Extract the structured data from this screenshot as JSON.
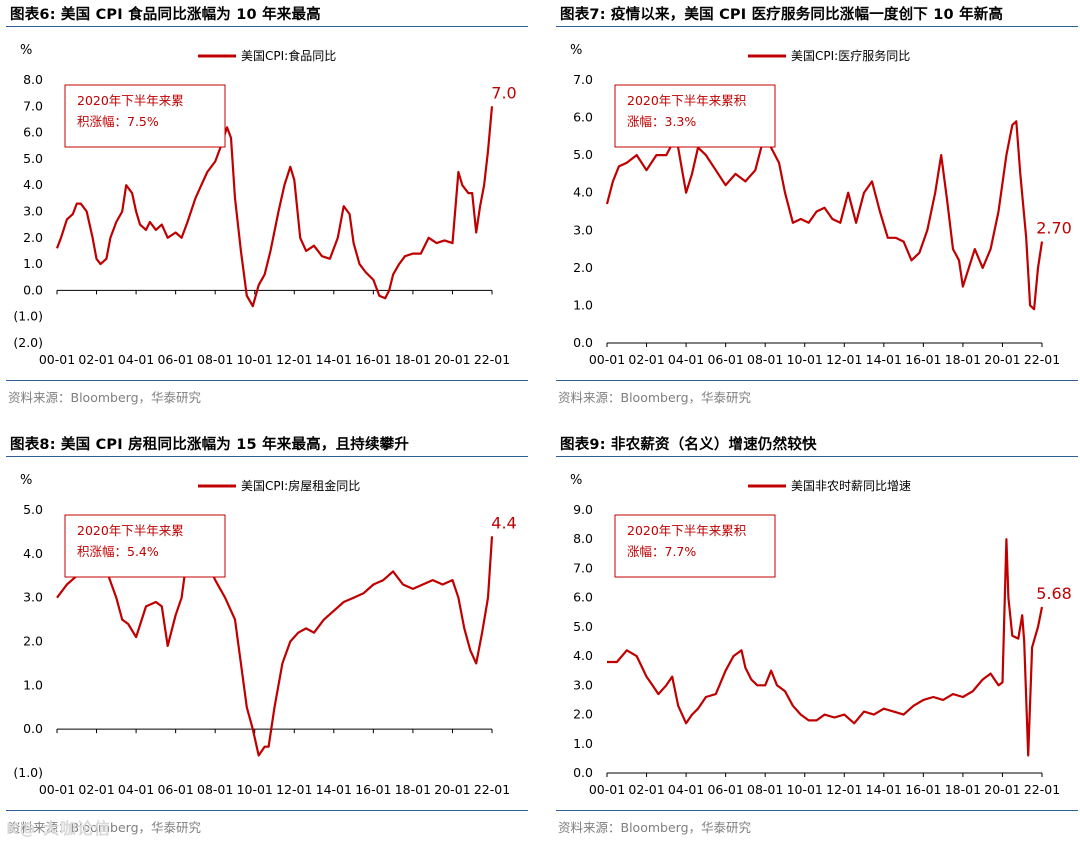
{
  "panels": [
    {
      "title": "图表6:  美国 CPI 食品同比涨幅为 10 年来最高",
      "source": "资料来源：Bloomberg，华泰研究",
      "chart_data": {
        "type": "line",
        "unit_label": "%",
        "legend": "美国CPI:食品同比",
        "annotation": [
          "2020年下半年来累",
          "积涨幅：7.5%"
        ],
        "end_label": "7.0",
        "ylim": [
          -2,
          8
        ],
        "y_ticks": [
          -2,
          -1,
          0,
          1,
          2,
          3,
          4,
          5,
          6,
          7,
          8
        ],
        "y_tick_labels": [
          "(2.0)",
          "(1.0)",
          "0.0",
          "1.0",
          "2.0",
          "3.0",
          "4.0",
          "5.0",
          "6.0",
          "7.0",
          "8.0"
        ],
        "x_tick_labels": [
          "00-01",
          "02-01",
          "04-01",
          "06-01",
          "08-01",
          "10-01",
          "12-01",
          "14-01",
          "16-01",
          "18-01",
          "20-01",
          "22-01"
        ],
        "x": [
          2000.0,
          2000.2,
          2000.5,
          2000.8,
          2001.0,
          2001.2,
          2001.5,
          2001.8,
          2002.0,
          2002.2,
          2002.5,
          2002.7,
          2003.0,
          2003.3,
          2003.5,
          2003.8,
          2004.0,
          2004.2,
          2004.5,
          2004.7,
          2005.0,
          2005.3,
          2005.6,
          2006.0,
          2006.3,
          2006.6,
          2007.0,
          2007.3,
          2007.6,
          2008.0,
          2008.3,
          2008.6,
          2008.8,
          2009.0,
          2009.3,
          2009.6,
          2009.9,
          2010.2,
          2010.5,
          2010.8,
          2011.2,
          2011.5,
          2011.8,
          2012.0,
          2012.3,
          2012.6,
          2013.0,
          2013.4,
          2013.8,
          2014.2,
          2014.5,
          2014.8,
          2015.0,
          2015.3,
          2015.6,
          2016.0,
          2016.3,
          2016.6,
          2016.8,
          2017.0,
          2017.3,
          2017.6,
          2018.0,
          2018.4,
          2018.8,
          2019.2,
          2019.6,
          2020.0,
          2020.3,
          2020.5,
          2020.8,
          2021.0,
          2021.2,
          2021.4,
          2021.6,
          2021.8,
          2022.0
        ],
        "values": [
          1.6,
          2.0,
          2.7,
          2.9,
          3.3,
          3.3,
          3.0,
          2.0,
          1.2,
          1.0,
          1.2,
          2.0,
          2.6,
          3.0,
          4.0,
          3.7,
          3.0,
          2.5,
          2.3,
          2.6,
          2.3,
          2.5,
          2.0,
          2.2,
          2.0,
          2.6,
          3.5,
          4.0,
          4.5,
          4.9,
          5.5,
          6.2,
          5.8,
          3.5,
          1.5,
          -0.2,
          -0.6,
          0.2,
          0.6,
          1.5,
          3.0,
          4.0,
          4.7,
          4.2,
          2.0,
          1.5,
          1.7,
          1.3,
          1.2,
          2.0,
          3.2,
          2.9,
          1.8,
          1.0,
          0.7,
          0.4,
          -0.2,
          -0.3,
          0.0,
          0.6,
          1.0,
          1.3,
          1.4,
          1.4,
          2.0,
          1.8,
          1.9,
          1.8,
          4.5,
          4.0,
          3.7,
          3.7,
          2.2,
          3.2,
          4.0,
          5.3,
          7.0
        ]
      }
    },
    {
      "title": "图表7:  疫情以来，美国 CPI 医疗服务同比涨幅一度创下 10 年新高",
      "source": "资料来源：Bloomberg，华泰研究",
      "chart_data": {
        "type": "line",
        "unit_label": "%",
        "legend": "美国CPI:医疗服务同比",
        "annotation": [
          "2020年下半年来累积",
          "涨幅：3.3%"
        ],
        "end_label": "2.70",
        "ylim": [
          0,
          7
        ],
        "y_ticks": [
          0,
          1,
          2,
          3,
          4,
          5,
          6,
          7
        ],
        "y_tick_labels": [
          "0.0",
          "1.0",
          "2.0",
          "3.0",
          "4.0",
          "5.0",
          "6.0",
          "7.0"
        ],
        "x_tick_labels": [
          "00-01",
          "02-01",
          "04-01",
          "06-01",
          "08-01",
          "10-01",
          "12-01",
          "14-01",
          "16-01",
          "18-01",
          "20-01",
          "22-01"
        ],
        "x": [
          2000.0,
          2000.3,
          2000.6,
          2001.0,
          2001.5,
          2002.0,
          2002.5,
          2003.0,
          2003.5,
          2003.8,
          2004.0,
          2004.3,
          2004.6,
          2005.0,
          2005.5,
          2006.0,
          2006.5,
          2007.0,
          2007.5,
          2007.8,
          2008.0,
          2008.3,
          2008.7,
          2009.0,
          2009.4,
          2009.8,
          2010.2,
          2010.6,
          2011.0,
          2011.4,
          2011.8,
          2012.2,
          2012.6,
          2013.0,
          2013.4,
          2013.8,
          2014.2,
          2014.6,
          2015.0,
          2015.4,
          2015.8,
          2016.2,
          2016.6,
          2016.9,
          2017.2,
          2017.5,
          2017.8,
          2018.0,
          2018.3,
          2018.6,
          2019.0,
          2019.4,
          2019.8,
          2020.2,
          2020.5,
          2020.7,
          2020.9,
          2021.2,
          2021.4,
          2021.6,
          2021.8,
          2022.0
        ],
        "values": [
          3.7,
          4.3,
          4.7,
          4.8,
          5.0,
          4.6,
          5.0,
          5.0,
          5.5,
          4.6,
          4.0,
          4.5,
          5.2,
          5.0,
          4.6,
          4.2,
          4.5,
          4.3,
          4.6,
          5.2,
          5.9,
          5.2,
          4.8,
          4.0,
          3.2,
          3.3,
          3.2,
          3.5,
          3.6,
          3.3,
          3.2,
          4.0,
          3.2,
          4.0,
          4.3,
          3.5,
          2.8,
          2.8,
          2.7,
          2.2,
          2.4,
          3.0,
          4.0,
          5.0,
          3.8,
          2.5,
          2.2,
          1.5,
          2.0,
          2.5,
          2.0,
          2.5,
          3.5,
          5.0,
          5.8,
          5.9,
          4.5,
          2.8,
          1.0,
          0.9,
          2.0,
          2.7
        ]
      }
    },
    {
      "title": "图表8:  美国 CPI 房租同比涨幅为 15 年来最高，且持续攀升",
      "source": "资料来源：Bloomberg，华泰研究",
      "chart_data": {
        "type": "line",
        "unit_label": "%",
        "legend": "美国CPI:房屋租金同比",
        "annotation": [
          "2020年下半年来累",
          "积涨幅：5.4%"
        ],
        "end_label": "4.4",
        "ylim": [
          -1,
          5
        ],
        "y_ticks": [
          -1,
          0,
          1,
          2,
          3,
          4,
          5
        ],
        "y_tick_labels": [
          "(1.0)",
          "0.0",
          "1.0",
          "2.0",
          "3.0",
          "4.0",
          "5.0"
        ],
        "x_tick_labels": [
          "00-01",
          "02-01",
          "04-01",
          "06-01",
          "08-01",
          "10-01",
          "12-01",
          "14-01",
          "16-01",
          "18-01",
          "20-01",
          "22-01"
        ],
        "x": [
          2000.0,
          2000.5,
          2001.0,
          2001.5,
          2002.0,
          2002.3,
          2002.6,
          2003.0,
          2003.3,
          2003.6,
          2004.0,
          2004.5,
          2005.0,
          2005.3,
          2005.6,
          2006.0,
          2006.3,
          2006.6,
          2007.0,
          2007.3,
          2007.6,
          2008.0,
          2008.5,
          2009.0,
          2009.3,
          2009.6,
          2009.9,
          2010.2,
          2010.5,
          2010.7,
          2011.0,
          2011.4,
          2011.8,
          2012.2,
          2012.6,
          2013.0,
          2013.5,
          2014.0,
          2014.5,
          2015.0,
          2015.5,
          2016.0,
          2016.5,
          2017.0,
          2017.5,
          2018.0,
          2018.5,
          2019.0,
          2019.5,
          2020.0,
          2020.3,
          2020.6,
          2020.9,
          2021.2,
          2021.5,
          2021.8,
          2022.0
        ],
        "values": [
          3.0,
          3.3,
          3.5,
          3.8,
          4.2,
          4.1,
          3.5,
          3.0,
          2.5,
          2.4,
          2.1,
          2.8,
          2.9,
          2.8,
          1.9,
          2.6,
          3.0,
          4.0,
          4.2,
          4.2,
          3.8,
          3.4,
          3.0,
          2.5,
          1.5,
          0.5,
          0.0,
          -0.6,
          -0.4,
          -0.4,
          0.5,
          1.5,
          2.0,
          2.2,
          2.3,
          2.2,
          2.5,
          2.7,
          2.9,
          3.0,
          3.1,
          3.3,
          3.4,
          3.6,
          3.3,
          3.2,
          3.3,
          3.4,
          3.3,
          3.4,
          3.0,
          2.3,
          1.8,
          1.5,
          2.2,
          3.0,
          4.4
        ]
      }
    },
    {
      "title": "图表9:  非农薪资（名义）增速仍然较快",
      "source": "资料来源：Bloomberg，华泰研究",
      "chart_data": {
        "type": "line",
        "unit_label": "%",
        "legend": "美国非农时薪同比增速",
        "annotation": [
          "2020年下半年来累积",
          "涨幅：7.7%"
        ],
        "end_label": "5.68",
        "ylim": [
          0,
          9
        ],
        "y_ticks": [
          0,
          1,
          2,
          3,
          4,
          5,
          6,
          7,
          8,
          9
        ],
        "y_tick_labels": [
          "0.0",
          "1.0",
          "2.0",
          "3.0",
          "4.0",
          "5.0",
          "6.0",
          "7.0",
          "8.0",
          "9.0"
        ],
        "x_tick_labels": [
          "00-01",
          "02-01",
          "04-01",
          "06-01",
          "08-01",
          "10-01",
          "12-01",
          "14-01",
          "16-01",
          "18-01",
          "20-01",
          "22-01"
        ],
        "x": [
          2000.0,
          2000.5,
          2001.0,
          2001.5,
          2002.0,
          2002.3,
          2002.6,
          2003.0,
          2003.3,
          2003.6,
          2004.0,
          2004.3,
          2004.6,
          2005.0,
          2005.5,
          2006.0,
          2006.4,
          2006.8,
          2007.0,
          2007.3,
          2007.6,
          2008.0,
          2008.3,
          2008.6,
          2009.0,
          2009.4,
          2009.8,
          2010.2,
          2010.6,
          2011.0,
          2011.5,
          2012.0,
          2012.5,
          2013.0,
          2013.5,
          2014.0,
          2014.5,
          2015.0,
          2015.5,
          2016.0,
          2016.5,
          2017.0,
          2017.5,
          2018.0,
          2018.5,
          2019.0,
          2019.4,
          2019.8,
          2020.0,
          2020.2,
          2020.3,
          2020.5,
          2020.8,
          2021.0,
          2021.1,
          2021.3,
          2021.5,
          2021.8,
          2022.0
        ],
        "values": [
          3.8,
          3.8,
          4.2,
          4.0,
          3.3,
          3.0,
          2.7,
          3.0,
          3.3,
          2.3,
          1.7,
          2.0,
          2.2,
          2.6,
          2.7,
          3.5,
          4.0,
          4.2,
          3.6,
          3.2,
          3.0,
          3.0,
          3.5,
          3.0,
          2.8,
          2.3,
          2.0,
          1.8,
          1.8,
          2.0,
          1.9,
          2.0,
          1.7,
          2.1,
          2.0,
          2.2,
          2.1,
          2.0,
          2.3,
          2.5,
          2.6,
          2.5,
          2.7,
          2.6,
          2.8,
          3.2,
          3.4,
          3.0,
          3.1,
          8.0,
          6.0,
          4.7,
          4.6,
          5.4,
          4.5,
          0.6,
          4.3,
          5.0,
          5.68
        ]
      }
    }
  ],
  "watermark": "K@ 大咖论信",
  "colors": {
    "series": "#c00000",
    "annotation_border": "#c00000",
    "rule": "#2f5f96"
  }
}
